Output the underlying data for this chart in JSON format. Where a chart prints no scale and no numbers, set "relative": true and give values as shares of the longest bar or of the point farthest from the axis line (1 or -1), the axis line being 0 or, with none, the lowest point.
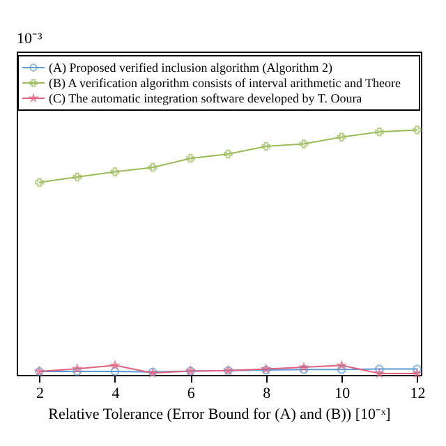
{
  "chart_data": {
    "type": "line",
    "relative": true,
    "xlabel": "Relative Tolerance (Error Bound for (A) and (B)) [10⁻ˣ]",
    "annotations": [
      "10⁻³"
    ],
    "x": [
      2,
      3,
      4,
      5,
      6,
      7,
      8,
      9,
      10,
      11,
      12
    ],
    "xlim": [
      1.4,
      12.1
    ],
    "xticks": [
      2,
      4,
      6,
      8,
      10,
      12
    ],
    "tick_labels": "x",
    "legend": "top",
    "grid": false,
    "series": [
      {
        "name": "(A) Proposed verified inclusion algorithm (Algorithm 2)",
        "color": "#5b9bd5",
        "marker": "circle",
        "values": [
          0.014,
          0.014,
          0.014,
          0.012,
          0.016,
          0.018,
          0.02,
          0.022,
          0.022,
          0.024,
          0.024
        ]
      },
      {
        "name": "(B) A verification algorithm consists of interval arithmetic and Theore",
        "color": "#9bbb59",
        "marker": "cross",
        "values": [
          0.786,
          0.808,
          0.829,
          0.847,
          0.884,
          0.902,
          0.933,
          0.943,
          0.971,
          0.992,
          1
        ]
      },
      {
        "name": "(C) The automatic integration software developed by T. Ooura",
        "color": "#e0607e",
        "marker": "star",
        "values": [
          0.014,
          0.025,
          0.039,
          0.008,
          0.016,
          0.018,
          0.024,
          0.031,
          0.039,
          0.006,
          0.006
        ]
      }
    ]
  }
}
